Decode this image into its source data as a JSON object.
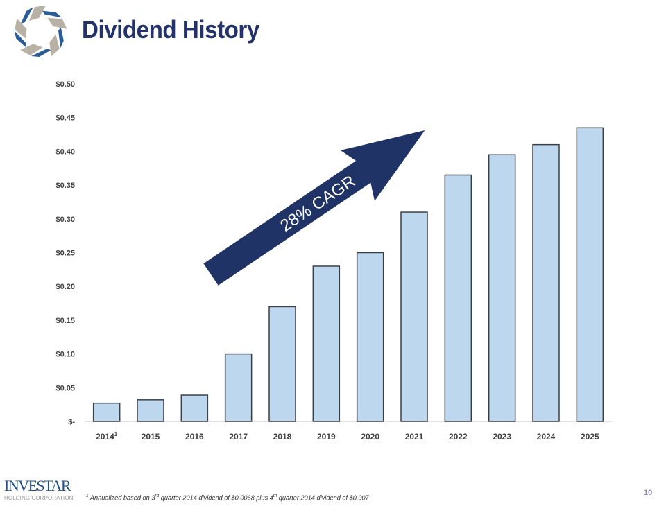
{
  "header": {
    "title": "Dividend History"
  },
  "chart_data": {
    "type": "bar",
    "title": "",
    "xlabel": "",
    "ylabel": "",
    "categories": [
      "2014",
      "2015",
      "2016",
      "2017",
      "2018",
      "2019",
      "2020",
      "2021",
      "2022",
      "2023",
      "2024",
      "2025"
    ],
    "category_superscripts": {
      "2014": "1"
    },
    "values": [
      0.027,
      0.032,
      0.039,
      0.1,
      0.17,
      0.23,
      0.25,
      0.31,
      0.365,
      0.395,
      0.41,
      0.435
    ],
    "ylim": [
      0,
      0.5
    ],
    "yticks": [
      0,
      0.05,
      0.1,
      0.15,
      0.2,
      0.25,
      0.3,
      0.35,
      0.4,
      0.45,
      0.5
    ],
    "ytick_labels": [
      "$-",
      "$0.05",
      "$0.10",
      "$0.15",
      "$0.20",
      "$0.25",
      "$0.30",
      "$0.35",
      "$0.40",
      "$0.45",
      "$0.50"
    ],
    "grid": false,
    "bar_color": "#bdd7ee",
    "annotation": {
      "text": "28% CAGR",
      "arrow_color": "#1f3366"
    }
  },
  "footer": {
    "logo_name": "INVESTAR",
    "logo_sub": "HOLDING CORPORATION",
    "footnote_mark": "1",
    "footnote_parts": [
      "Annualized based on 3",
      "rd",
      " quarter 2014 dividend of $0.0068 plus 4",
      "th",
      " quarter 2014 dividend of $0.007"
    ],
    "page_number": "10"
  }
}
